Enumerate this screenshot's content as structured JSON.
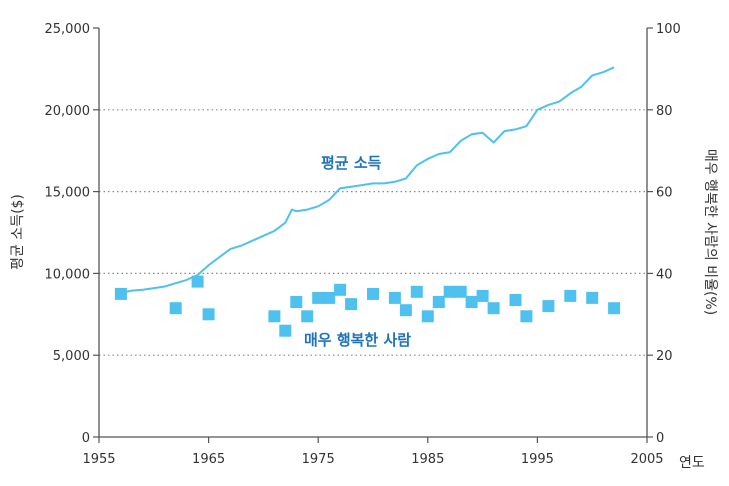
{
  "chart_data": {
    "type": "line",
    "title": "",
    "xlabel": "연도",
    "ylabel": "평균 소득($)",
    "y2label": "매우 행복한 사람의 비율(%)",
    "xlim": [
      1955,
      2005
    ],
    "ylim": [
      0,
      25000
    ],
    "y2lim": [
      0,
      100
    ],
    "x_ticks": [
      "1955",
      "1965",
      "1975",
      "1985",
      "1995",
      "2005"
    ],
    "y_ticks": [
      "0",
      "5,000",
      "10,000",
      "15,000",
      "20,000",
      "25,000"
    ],
    "y2_ticks": [
      "0",
      "20",
      "40",
      "60",
      "80",
      "100"
    ],
    "grid": "dotted horizontal at 20, 40, 80 (right axis)",
    "colors": {
      "series": "#4ec1ef",
      "label": "#1f73b8",
      "axis": "#555555",
      "grid": "#888888"
    },
    "series": [
      {
        "name": "평균 소득",
        "axis": "left",
        "type": "line",
        "x": [
          1957,
          1958,
          1959,
          1960,
          1961,
          1962,
          1963,
          1964,
          1965,
          1966,
          1967,
          1968,
          1969,
          1970,
          1971,
          1972,
          1972.6,
          1973,
          1974,
          1975,
          1976,
          1977,
          1978,
          1979,
          1980,
          1981,
          1982,
          1983,
          1984,
          1985,
          1986,
          1987,
          1988,
          1989,
          1990,
          1991,
          1992,
          1993,
          1994,
          1995,
          1996,
          1997,
          1998,
          1999,
          2000,
          2001,
          2002
        ],
        "values": [
          8800,
          8950,
          9000,
          9100,
          9200,
          9400,
          9600,
          9900,
          10500,
          11000,
          11500,
          11700,
          12000,
          12300,
          12600,
          13100,
          13900,
          13800,
          13900,
          14100,
          14500,
          15200,
          15300,
          15400,
          15500,
          15500,
          15600,
          15800,
          16600,
          17000,
          17300,
          17400,
          18100,
          18500,
          18600,
          18000,
          18700,
          18800,
          19000,
          20000,
          20300,
          20500,
          21000,
          21400,
          22100,
          22300,
          22600
        ]
      },
      {
        "name": "매우 행복한 사람",
        "axis": "right",
        "type": "scatter",
        "x": [
          1957,
          1962,
          1964,
          1965,
          1971,
          1972,
          1973,
          1974,
          1975,
          1976,
          1977,
          1978,
          1980,
          1982,
          1983,
          1984,
          1985,
          1986,
          1987,
          1988,
          1989,
          1990,
          1991,
          1993,
          1994,
          1996,
          1998,
          2000,
          2002
        ],
        "values": [
          35,
          31.5,
          38,
          30,
          29.5,
          26,
          33,
          29.5,
          34,
          34,
          36,
          32.5,
          35,
          34,
          31,
          35.5,
          29.5,
          33,
          35.5,
          35.5,
          33,
          34.5,
          31.5,
          33.5,
          29.5,
          32,
          34.5,
          34,
          31.5
        ]
      }
    ]
  }
}
